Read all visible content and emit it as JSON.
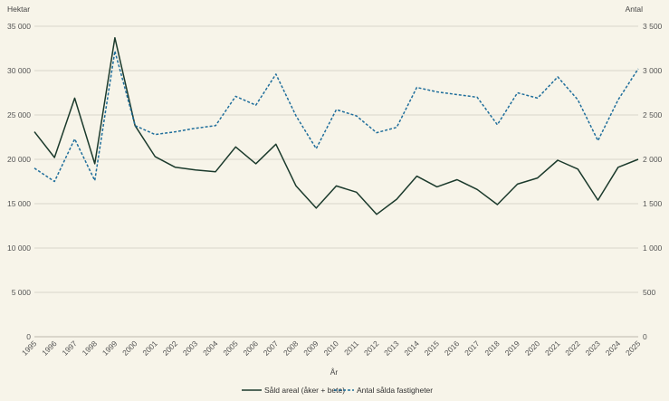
{
  "chart_data": {
    "type": "line",
    "title": "",
    "xlabel": "År",
    "ylabel_left": "Hektar",
    "ylabel_right": "Antal",
    "x": [
      "1995",
      "1996",
      "1997",
      "1998",
      "1999",
      "2000",
      "2001",
      "2002",
      "2003",
      "2004",
      "2005",
      "2006",
      "2007",
      "2008",
      "2009",
      "2010",
      "2011",
      "2012",
      "2013",
      "2014",
      "2015",
      "2016",
      "2017",
      "2018",
      "2019",
      "2020",
      "2021",
      "2022",
      "2023",
      "2024",
      "2025"
    ],
    "y_left": {
      "min": 0,
      "max": 35000,
      "ticks": [
        0,
        5000,
        10000,
        15000,
        20000,
        25000,
        30000,
        35000
      ],
      "tick_labels": [
        "0",
        "5 000",
        "10 000",
        "15 000",
        "20 000",
        "25 000",
        "30 000",
        "35 000"
      ]
    },
    "y_right": {
      "min": 0,
      "max": 3500,
      "ticks": [
        0,
        500,
        1000,
        1500,
        2000,
        2500,
        3000,
        3500
      ],
      "tick_labels": [
        "0",
        "500",
        "1 000",
        "1 500",
        "2 000",
        "2 500",
        "3 000",
        "3 500"
      ]
    },
    "grid": "horizontal",
    "legend_position": "bottom",
    "series": [
      {
        "name": "Såld areal (åker + bete)",
        "axis": "left",
        "style": "solid",
        "color": "#1b3a2c",
        "values": [
          23100,
          20200,
          26900,
          19500,
          33700,
          23800,
          20300,
          19100,
          18800,
          18600,
          21400,
          19500,
          21700,
          17000,
          14500,
          17000,
          16300,
          13800,
          15500,
          18100,
          16900,
          17700,
          16600,
          14900,
          17200,
          17900,
          19900,
          18900,
          15400,
          19100,
          20000
        ]
      },
      {
        "name": "Antal sålda fastigheter",
        "axis": "right",
        "style": "dashed",
        "color": "#1f6e9b",
        "values": [
          1900,
          1750,
          2230,
          1760,
          3220,
          2380,
          2280,
          2310,
          2350,
          2380,
          2710,
          2610,
          2960,
          2490,
          2120,
          2560,
          2490,
          2300,
          2360,
          2810,
          2760,
          2730,
          2700,
          2390,
          2750,
          2690,
          2930,
          2670,
          2210,
          2670,
          3020
        ]
      }
    ]
  }
}
